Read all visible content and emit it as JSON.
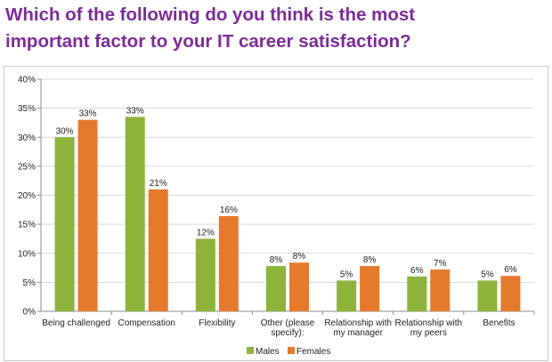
{
  "title": {
    "line1": "Which of the following do you think is the most",
    "line2": "important factor to your IT career satisfaction?"
  },
  "colors": {
    "title": "#7b2c97",
    "males": "#8db33b",
    "females": "#e57a2c",
    "grid": "#d9d9d9",
    "axis": "#8c8c8c"
  },
  "chart_data": {
    "type": "bar",
    "categories": [
      [
        "Being challenged"
      ],
      [
        "Compensation"
      ],
      [
        "Flexibility"
      ],
      [
        "Other (please",
        "specify):"
      ],
      [
        "Relationship with",
        "my manager"
      ],
      [
        "Relationship with",
        "my peers"
      ],
      [
        "Benefits"
      ]
    ],
    "series": [
      {
        "name": "Males",
        "values": [
          30,
          33.5,
          12.5,
          7.8,
          5.3,
          6,
          5.3
        ],
        "labels": [
          "30%",
          "33%",
          "12%",
          "8%",
          "5%",
          "6%",
          "5%"
        ]
      },
      {
        "name": "Females",
        "values": [
          33,
          21,
          16.4,
          8.4,
          7.8,
          7.2,
          6.1
        ],
        "labels": [
          "33%",
          "21%",
          "16%",
          "8%",
          "8%",
          "7%",
          "6%"
        ]
      }
    ],
    "ylim": [
      0,
      40
    ],
    "yticks": [
      "0%",
      "5%",
      "10%",
      "15%",
      "20%",
      "25%",
      "30%",
      "35%",
      "40%"
    ],
    "grid": true,
    "legend_position": "bottom"
  }
}
